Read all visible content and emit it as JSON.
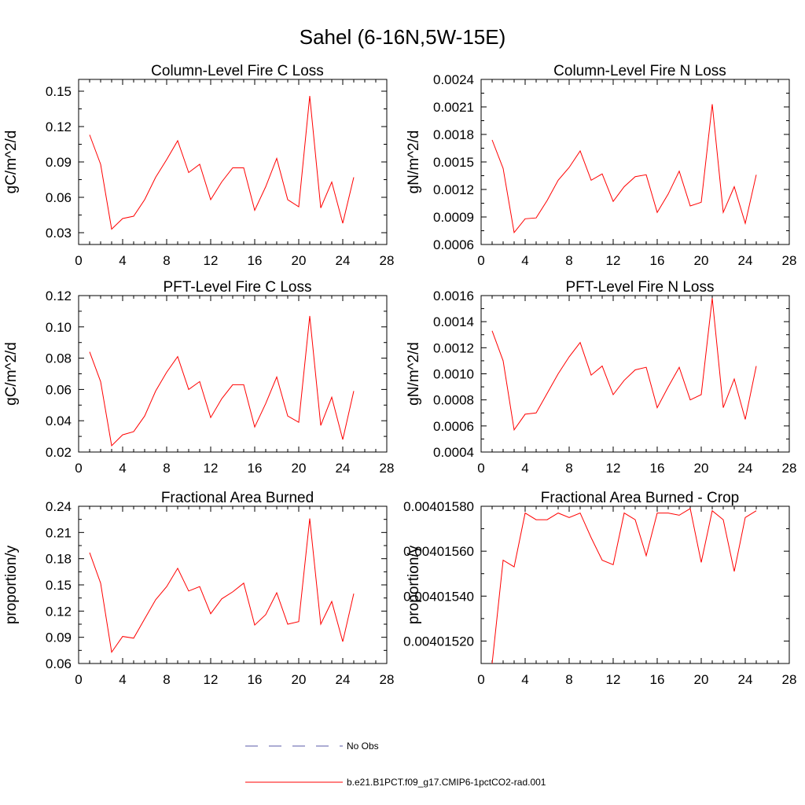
{
  "title": "Sahel (6-16N,5W-15E)",
  "colors": {
    "series": "#ff0000",
    "no_obs": "#5a5aa8"
  },
  "legend": [
    {
      "label": "No Obs",
      "style": "dashed",
      "color": "#5a5aa8"
    },
    {
      "label": "b.e21.B1PCT.f09_g17.CMIP6-1pctCO2-rad.001",
      "style": "solid",
      "color": "#ff0000"
    }
  ],
  "chart_data": [
    {
      "type": "line",
      "title": "Column-Level Fire C Loss",
      "ylabel": "gC/m^2/d",
      "xlim": [
        0,
        28
      ],
      "ylim": [
        0.02,
        0.16
      ],
      "xticks": [
        "0",
        "4",
        "8",
        "12",
        "16",
        "20",
        "24",
        "28"
      ],
      "xtick_values": [
        0,
        4,
        8,
        12,
        16,
        20,
        24,
        28
      ],
      "yticks": [
        "0.03",
        "0.06",
        "0.09",
        "0.12",
        "0.15"
      ],
      "ytick_values": [
        0.03,
        0.06,
        0.09,
        0.12,
        0.15
      ],
      "x": [
        1,
        2,
        3,
        4,
        5,
        6,
        7,
        8,
        9,
        10,
        11,
        12,
        13,
        14,
        15,
        16,
        17,
        18,
        19,
        20,
        21,
        22,
        23,
        24,
        25
      ],
      "series": [
        {
          "name": "b.e21.B1PCT.f09_g17.CMIP6-1pctCO2-rad.001",
          "values": [
            0.113,
            0.088,
            0.033,
            0.042,
            0.044,
            0.058,
            0.077,
            0.092,
            0.108,
            0.081,
            0.088,
            0.058,
            0.073,
            0.085,
            0.085,
            0.049,
            0.069,
            0.093,
            0.058,
            0.052,
            0.146,
            0.051,
            0.073,
            0.038,
            0.077
          ]
        }
      ]
    },
    {
      "type": "line",
      "title": "Column-Level Fire N Loss",
      "ylabel": "gN/m^2/d",
      "xlim": [
        0,
        28
      ],
      "ylim": [
        0.0006,
        0.0024
      ],
      "xticks": [
        "0",
        "4",
        "8",
        "12",
        "16",
        "20",
        "24",
        "28"
      ],
      "xtick_values": [
        0,
        4,
        8,
        12,
        16,
        20,
        24,
        28
      ],
      "yticks": [
        "0.0006",
        "0.0009",
        "0.0012",
        "0.0015",
        "0.0018",
        "0.0021",
        "0.0024"
      ],
      "ytick_values": [
        0.0006,
        0.0009,
        0.0012,
        0.0015,
        0.0018,
        0.0021,
        0.0024
      ],
      "x": [
        1,
        2,
        3,
        4,
        5,
        6,
        7,
        8,
        9,
        10,
        11,
        12,
        13,
        14,
        15,
        16,
        17,
        18,
        19,
        20,
        21,
        22,
        23,
        24,
        25
      ],
      "series": [
        {
          "name": "b.e21.B1PCT.f09_g17.CMIP6-1pctCO2-rad.001",
          "values": [
            0.00174,
            0.00143,
            0.00073,
            0.00088,
            0.00089,
            0.00108,
            0.0013,
            0.00144,
            0.00162,
            0.0013,
            0.00137,
            0.00107,
            0.00123,
            0.00134,
            0.00136,
            0.00095,
            0.00115,
            0.0014,
            0.00102,
            0.00106,
            0.00213,
            0.00095,
            0.00123,
            0.00083,
            0.00136
          ]
        }
      ]
    },
    {
      "type": "line",
      "title": "PFT-Level Fire C Loss",
      "ylabel": "gC/m^2/d",
      "xlim": [
        0,
        28
      ],
      "ylim": [
        0.02,
        0.12
      ],
      "xticks": [
        "0",
        "4",
        "8",
        "12",
        "16",
        "20",
        "24",
        "28"
      ],
      "xtick_values": [
        0,
        4,
        8,
        12,
        16,
        20,
        24,
        28
      ],
      "yticks": [
        "0.02",
        "0.04",
        "0.06",
        "0.08",
        "0.10",
        "0.12"
      ],
      "ytick_values": [
        0.02,
        0.04,
        0.06,
        0.08,
        0.1,
        0.12
      ],
      "x": [
        1,
        2,
        3,
        4,
        5,
        6,
        7,
        8,
        9,
        10,
        11,
        12,
        13,
        14,
        15,
        16,
        17,
        18,
        19,
        20,
        21,
        22,
        23,
        24,
        25
      ],
      "series": [
        {
          "name": "b.e21.B1PCT.f09_g17.CMIP6-1pctCO2-rad.001",
          "values": [
            0.084,
            0.065,
            0.024,
            0.031,
            0.033,
            0.043,
            0.059,
            0.071,
            0.081,
            0.06,
            0.065,
            0.042,
            0.054,
            0.063,
            0.063,
            0.036,
            0.051,
            0.068,
            0.043,
            0.039,
            0.107,
            0.037,
            0.055,
            0.028,
            0.059
          ]
        }
      ]
    },
    {
      "type": "line",
      "title": "PFT-Level Fire N Loss",
      "ylabel": "gN/m^2/d",
      "xlim": [
        0,
        28
      ],
      "ylim": [
        0.0004,
        0.0016
      ],
      "xticks": [
        "0",
        "4",
        "8",
        "12",
        "16",
        "20",
        "24",
        "28"
      ],
      "xtick_values": [
        0,
        4,
        8,
        12,
        16,
        20,
        24,
        28
      ],
      "yticks": [
        "0.0004",
        "0.0006",
        "0.0008",
        "0.0010",
        "0.0012",
        "0.0014",
        "0.0016"
      ],
      "ytick_values": [
        0.0004,
        0.0006,
        0.0008,
        0.001,
        0.0012,
        0.0014,
        0.0016
      ],
      "x": [
        1,
        2,
        3,
        4,
        5,
        6,
        7,
        8,
        9,
        10,
        11,
        12,
        13,
        14,
        15,
        16,
        17,
        18,
        19,
        20,
        21,
        22,
        23,
        24,
        25
      ],
      "series": [
        {
          "name": "b.e21.B1PCT.f09_g17.CMIP6-1pctCO2-rad.001",
          "values": [
            0.00133,
            0.0011,
            0.00057,
            0.00069,
            0.0007,
            0.00085,
            0.001,
            0.00113,
            0.00124,
            0.00099,
            0.00106,
            0.00084,
            0.00095,
            0.00103,
            0.00105,
            0.00074,
            0.0009,
            0.00105,
            0.0008,
            0.00084,
            0.00158,
            0.00074,
            0.00096,
            0.00065,
            0.00106
          ]
        }
      ]
    },
    {
      "type": "line",
      "title": "Fractional Area Burned",
      "ylabel": "proportion/y",
      "xlim": [
        0,
        28
      ],
      "ylim": [
        0.06,
        0.24
      ],
      "xticks": [
        "0",
        "4",
        "8",
        "12",
        "16",
        "20",
        "24",
        "28"
      ],
      "xtick_values": [
        0,
        4,
        8,
        12,
        16,
        20,
        24,
        28
      ],
      "yticks": [
        "0.06",
        "0.09",
        "0.12",
        "0.15",
        "0.18",
        "0.21",
        "0.24"
      ],
      "ytick_values": [
        0.06,
        0.09,
        0.12,
        0.15,
        0.18,
        0.21,
        0.24
      ],
      "x": [
        1,
        2,
        3,
        4,
        5,
        6,
        7,
        8,
        9,
        10,
        11,
        12,
        13,
        14,
        15,
        16,
        17,
        18,
        19,
        20,
        21,
        22,
        23,
        24,
        25
      ],
      "series": [
        {
          "name": "b.e21.B1PCT.f09_g17.CMIP6-1pctCO2-rad.001",
          "values": [
            0.187,
            0.152,
            0.073,
            0.091,
            0.089,
            0.111,
            0.133,
            0.148,
            0.169,
            0.143,
            0.148,
            0.117,
            0.134,
            0.142,
            0.152,
            0.104,
            0.116,
            0.141,
            0.105,
            0.108,
            0.226,
            0.105,
            0.131,
            0.085,
            0.14
          ]
        }
      ]
    },
    {
      "type": "line",
      "title": "Fractional Area Burned - Crop",
      "ylabel": "proportion/y",
      "xlim": [
        0,
        28
      ],
      "ylim": [
        0.0040151,
        0.0040158
      ],
      "xticks": [
        "0",
        "4",
        "8",
        "12",
        "16",
        "20",
        "24",
        "28"
      ],
      "xtick_values": [
        0,
        4,
        8,
        12,
        16,
        20,
        24,
        28
      ],
      "yticks": [
        "0.00401520",
        "0.00401540",
        "0.00401560",
        "0.00401580"
      ],
      "ytick_values": [
        0.0040152,
        0.0040154,
        0.0040156,
        0.0040158
      ],
      "x": [
        1,
        2,
        3,
        4,
        5,
        6,
        7,
        8,
        9,
        10,
        11,
        12,
        13,
        14,
        15,
        16,
        17,
        18,
        19,
        20,
        21,
        22,
        23,
        24,
        25
      ],
      "series": [
        {
          "name": "b.e21.B1PCT.f09_g17.CMIP6-1pctCO2-rad.001",
          "values": [
            0.0040151,
            0.00401556,
            0.00401553,
            0.00401577,
            0.00401574,
            0.00401574,
            0.00401577,
            0.00401575,
            0.00401577,
            0.00401566,
            0.00401556,
            0.00401554,
            0.00401577,
            0.00401574,
            0.00401558,
            0.00401577,
            0.00401577,
            0.00401576,
            0.00401579,
            0.00401555,
            0.00401578,
            0.00401574,
            0.00401551,
            0.00401575,
            0.00401578
          ]
        }
      ]
    }
  ]
}
